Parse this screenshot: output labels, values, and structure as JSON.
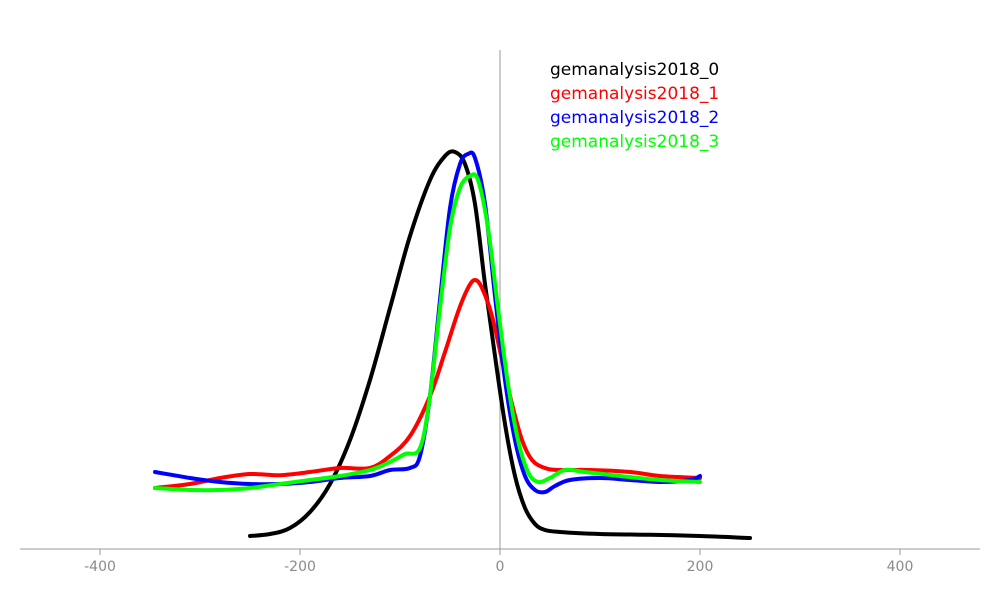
{
  "chart_data": {
    "type": "line",
    "title": "",
    "xlabel": "",
    "ylabel": "",
    "xlim": [
      -480,
      480
    ],
    "ylim": [
      0,
      1
    ],
    "grid": false,
    "legend": "top-right",
    "x_ticks": [
      {
        "value": -400,
        "label": "-400"
      },
      {
        "value": -200,
        "label": "-200"
      },
      {
        "value": 0,
        "label": "0"
      },
      {
        "value": 200,
        "label": "200"
      },
      {
        "value": 400,
        "label": "400"
      }
    ],
    "series": [
      {
        "name": "gemanalysis2018_0",
        "color": "#000000",
        "points": [
          [
            -250,
            0.03
          ],
          [
            -230,
            0.035
          ],
          [
            -210,
            0.05
          ],
          [
            -190,
            0.09
          ],
          [
            -170,
            0.16
          ],
          [
            -150,
            0.27
          ],
          [
            -130,
            0.42
          ],
          [
            -110,
            0.6
          ],
          [
            -90,
            0.78
          ],
          [
            -70,
            0.92
          ],
          [
            -55,
            0.98
          ],
          [
            -45,
            0.99
          ],
          [
            -35,
            0.96
          ],
          [
            -25,
            0.86
          ],
          [
            -15,
            0.66
          ],
          [
            -5,
            0.48
          ],
          [
            5,
            0.31
          ],
          [
            15,
            0.18
          ],
          [
            25,
            0.1
          ],
          [
            35,
            0.06
          ],
          [
            45,
            0.045
          ],
          [
            60,
            0.04
          ],
          [
            100,
            0.035
          ],
          [
            150,
            0.033
          ],
          [
            200,
            0.03
          ],
          [
            250,
            0.025
          ]
        ]
      },
      {
        "name": "gemanalysis2018_1",
        "color": "#ff0000",
        "points": [
          [
            -345,
            0.15
          ],
          [
            -310,
            0.16
          ],
          [
            -280,
            0.175
          ],
          [
            -250,
            0.185
          ],
          [
            -220,
            0.182
          ],
          [
            -190,
            0.19
          ],
          [
            -160,
            0.2
          ],
          [
            -130,
            0.2
          ],
          [
            -110,
            0.23
          ],
          [
            -90,
            0.28
          ],
          [
            -70,
            0.38
          ],
          [
            -55,
            0.49
          ],
          [
            -42,
            0.59
          ],
          [
            -32,
            0.65
          ],
          [
            -25,
            0.67
          ],
          [
            -18,
            0.65
          ],
          [
            -8,
            0.58
          ],
          [
            2,
            0.47
          ],
          [
            12,
            0.36
          ],
          [
            22,
            0.27
          ],
          [
            32,
            0.22
          ],
          [
            45,
            0.2
          ],
          [
            60,
            0.195
          ],
          [
            90,
            0.195
          ],
          [
            130,
            0.19
          ],
          [
            160,
            0.18
          ],
          [
            200,
            0.175
          ]
        ]
      },
      {
        "name": "gemanalysis2018_2",
        "color": "#0000ff",
        "points": [
          [
            -345,
            0.19
          ],
          [
            -310,
            0.175
          ],
          [
            -280,
            0.165
          ],
          [
            -250,
            0.16
          ],
          [
            -220,
            0.16
          ],
          [
            -190,
            0.165
          ],
          [
            -160,
            0.175
          ],
          [
            -130,
            0.18
          ],
          [
            -110,
            0.195
          ],
          [
            -90,
            0.2
          ],
          [
            -80,
            0.23
          ],
          [
            -70,
            0.38
          ],
          [
            -60,
            0.62
          ],
          [
            -50,
            0.85
          ],
          [
            -40,
            0.96
          ],
          [
            -32,
            0.985
          ],
          [
            -25,
            0.975
          ],
          [
            -15,
            0.86
          ],
          [
            -5,
            0.63
          ],
          [
            5,
            0.42
          ],
          [
            15,
            0.27
          ],
          [
            25,
            0.18
          ],
          [
            35,
            0.145
          ],
          [
            45,
            0.14
          ],
          [
            55,
            0.155
          ],
          [
            70,
            0.17
          ],
          [
            100,
            0.175
          ],
          [
            130,
            0.17
          ],
          [
            160,
            0.165
          ],
          [
            190,
            0.17
          ],
          [
            200,
            0.18
          ]
        ]
      },
      {
        "name": "gemanalysis2018_3",
        "color": "#00ff00",
        "points": [
          [
            -345,
            0.15
          ],
          [
            -310,
            0.145
          ],
          [
            -280,
            0.145
          ],
          [
            -250,
            0.15
          ],
          [
            -220,
            0.16
          ],
          [
            -190,
            0.17
          ],
          [
            -160,
            0.18
          ],
          [
            -130,
            0.195
          ],
          [
            -110,
            0.215
          ],
          [
            -95,
            0.235
          ],
          [
            -80,
            0.25
          ],
          [
            -70,
            0.38
          ],
          [
            -60,
            0.6
          ],
          [
            -50,
            0.8
          ],
          [
            -40,
            0.9
          ],
          [
            -30,
            0.93
          ],
          [
            -22,
            0.92
          ],
          [
            -12,
            0.8
          ],
          [
            -2,
            0.6
          ],
          [
            8,
            0.41
          ],
          [
            18,
            0.27
          ],
          [
            28,
            0.19
          ],
          [
            38,
            0.165
          ],
          [
            50,
            0.175
          ],
          [
            65,
            0.195
          ],
          [
            85,
            0.19
          ],
          [
            120,
            0.18
          ],
          [
            160,
            0.17
          ],
          [
            200,
            0.165
          ]
        ]
      }
    ]
  }
}
